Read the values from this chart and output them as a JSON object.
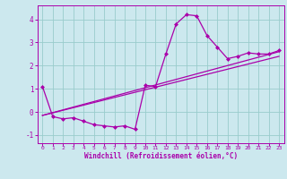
{
  "title": "",
  "xlabel": "Windchill (Refroidissement éolien,°C)",
  "ylabel": "",
  "bg_color": "#cce8ee",
  "line_color": "#aa00aa",
  "grid_color": "#99cccc",
  "xlim": [
    -0.5,
    23.5
  ],
  "ylim": [
    -1.35,
    4.6
  ],
  "xticks": [
    0,
    1,
    2,
    3,
    4,
    5,
    6,
    7,
    8,
    9,
    10,
    11,
    12,
    13,
    14,
    15,
    16,
    17,
    18,
    19,
    20,
    21,
    22,
    23
  ],
  "yticks": [
    -1,
    0,
    1,
    2,
    3,
    4
  ],
  "line1_x": [
    0,
    1,
    2,
    3,
    4,
    5,
    6,
    7,
    8,
    9,
    10,
    11,
    12,
    13,
    14,
    15,
    16,
    17,
    18,
    19,
    20,
    21,
    22,
    23
  ],
  "line1_y": [
    1.1,
    -0.2,
    -0.3,
    -0.25,
    -0.4,
    -0.55,
    -0.6,
    -0.65,
    -0.6,
    -0.75,
    1.15,
    1.1,
    2.5,
    3.8,
    4.2,
    4.15,
    3.3,
    2.8,
    2.3,
    2.4,
    2.55,
    2.5,
    2.5,
    2.65
  ],
  "line2_x": [
    0,
    23
  ],
  "line2_y": [
    -0.15,
    2.6
  ],
  "line3_x": [
    0,
    23
  ],
  "line3_y": [
    -0.15,
    2.4
  ]
}
